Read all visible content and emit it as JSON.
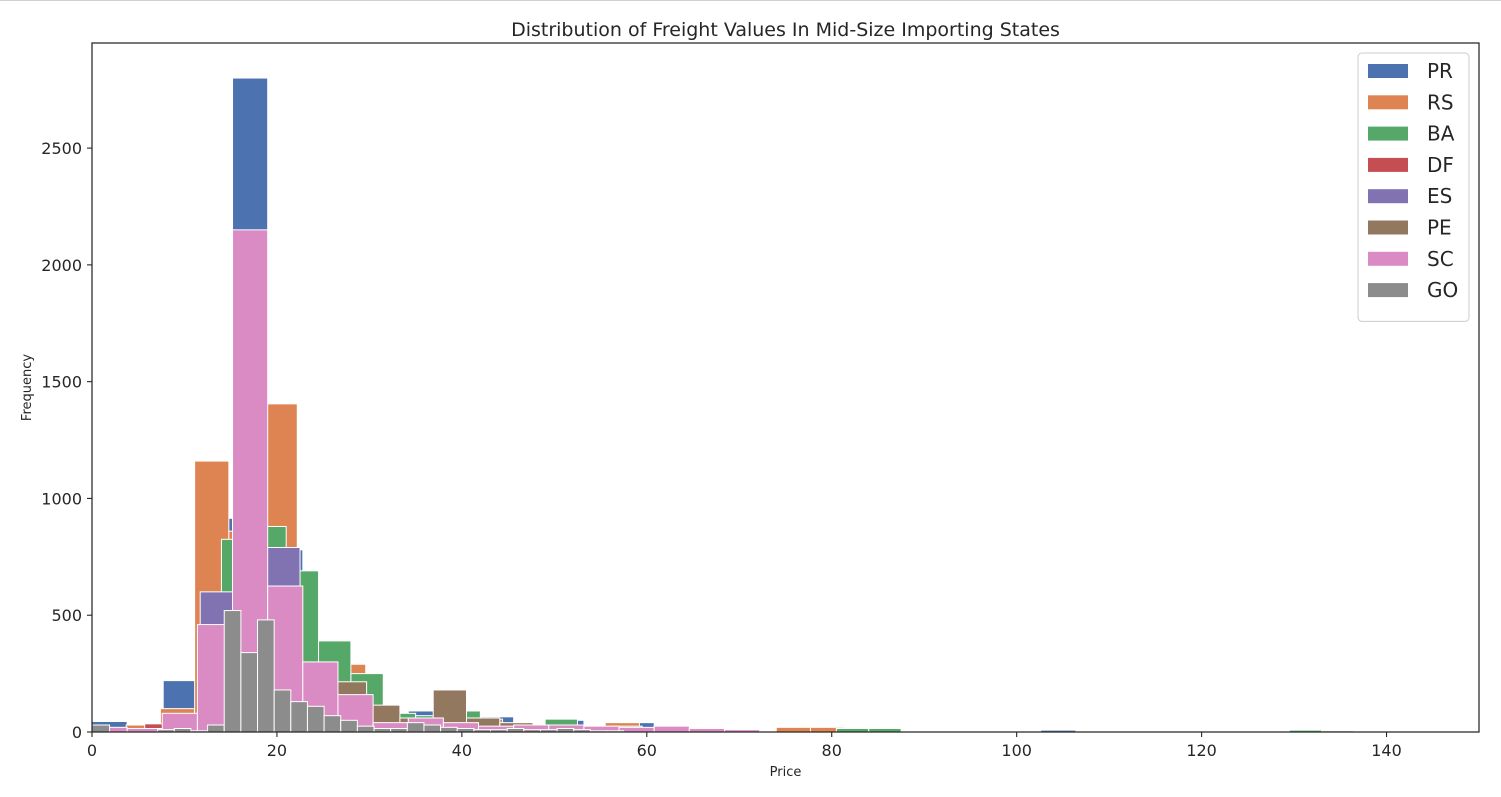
{
  "chart_data": {
    "type": "bar",
    "subtype": "histogram (overlaid)",
    "title": "Distribution of Freight Values In Mid-Size Importing States",
    "xlabel": "Price",
    "ylabel": "Frequency",
    "xlim": [
      0,
      150
    ],
    "ylim": [
      0,
      2950
    ],
    "xticks": [
      0,
      20,
      40,
      60,
      80,
      100,
      120,
      140
    ],
    "yticks": [
      0,
      500,
      1000,
      1500,
      2000,
      2500
    ],
    "legend_position": "upper right",
    "grid": false,
    "bar_edge_color": "#ffffff",
    "series": [
      {
        "name": "PR",
        "color": "#4c72b0",
        "bins": [
          [
            0,
            3.8,
            45
          ],
          [
            7.7,
            11.4,
            220
          ],
          [
            11.4,
            15.2,
            915
          ],
          [
            15.2,
            19,
            2800
          ],
          [
            19,
            22.8,
            780
          ],
          [
            26.6,
            30.4,
            180
          ],
          [
            34.2,
            38,
            90
          ],
          [
            38,
            41.8,
            70
          ],
          [
            41.8,
            45.6,
            65
          ],
          [
            49.4,
            53.2,
            50
          ],
          [
            57,
            60.8,
            40
          ],
          [
            64.6,
            68.4,
            15
          ],
          [
            102.6,
            106.4,
            8
          ]
        ]
      },
      {
        "name": "RS",
        "color": "#dd8452",
        "bins": [
          [
            3.7,
            7.4,
            30
          ],
          [
            7.4,
            11.1,
            100
          ],
          [
            11.1,
            14.8,
            1160
          ],
          [
            14.8,
            18.5,
            860
          ],
          [
            18.5,
            22.2,
            1405
          ],
          [
            22.2,
            25.9,
            330
          ],
          [
            25.9,
            29.6,
            290
          ],
          [
            29.6,
            33.3,
            90
          ],
          [
            40.7,
            44.4,
            55
          ],
          [
            55.5,
            59.2,
            40
          ],
          [
            74,
            77.7,
            20
          ],
          [
            77.7,
            81.4,
            20
          ]
        ]
      },
      {
        "name": "BA",
        "color": "#55a868",
        "bins": [
          [
            14,
            17.5,
            825
          ],
          [
            17.5,
            21,
            880
          ],
          [
            21,
            24.5,
            690
          ],
          [
            24.5,
            28,
            390
          ],
          [
            28,
            31.5,
            250
          ],
          [
            31.5,
            35,
            80
          ],
          [
            35,
            38.5,
            70
          ],
          [
            38.5,
            42,
            90
          ],
          [
            49,
            52.5,
            55
          ],
          [
            56,
            59.5,
            25
          ],
          [
            80.5,
            84,
            15
          ],
          [
            84,
            87.5,
            15
          ],
          [
            129.5,
            133,
            8
          ],
          [
            133,
            136.5,
            5
          ]
        ]
      },
      {
        "name": "DF",
        "color": "#c44e52",
        "bins": [
          [
            5.7,
            9.5,
            35
          ],
          [
            13.3,
            17.1,
            580
          ],
          [
            17.1,
            20.9,
            720
          ],
          [
            20.9,
            24.7,
            280
          ],
          [
            24.7,
            28.5,
            160
          ],
          [
            32.3,
            36.1,
            50
          ]
        ]
      },
      {
        "name": "ES",
        "color": "#8172b2",
        "bins": [
          [
            11.7,
            15.3,
            600
          ],
          [
            15.3,
            18.9,
            700
          ],
          [
            18.9,
            22.5,
            790
          ],
          [
            22.5,
            26.1,
            240
          ],
          [
            26.1,
            29.7,
            130
          ],
          [
            33.3,
            36.9,
            45
          ]
        ]
      },
      {
        "name": "PE",
        "color": "#937860",
        "bins": [
          [
            26.1,
            29.7,
            215
          ],
          [
            29.7,
            33.3,
            115
          ],
          [
            33.3,
            36.9,
            60
          ],
          [
            36.9,
            40.5,
            180
          ],
          [
            40.5,
            44.1,
            60
          ],
          [
            44.1,
            47.7,
            40
          ],
          [
            47.7,
            51.3,
            30
          ]
        ]
      },
      {
        "name": "SC",
        "color": "#da8bc3",
        "bins": [
          [
            0,
            3.8,
            20
          ],
          [
            3.8,
            7.6,
            15
          ],
          [
            7.6,
            11.4,
            80
          ],
          [
            11.4,
            15.2,
            460
          ],
          [
            15.2,
            19,
            2150
          ],
          [
            19,
            22.8,
            625
          ],
          [
            22.8,
            26.6,
            300
          ],
          [
            26.6,
            30.4,
            160
          ],
          [
            30.4,
            34.2,
            40
          ],
          [
            34.2,
            38,
            60
          ],
          [
            38,
            41.8,
            40
          ],
          [
            41.8,
            45.6,
            25
          ],
          [
            45.6,
            49.4,
            30
          ],
          [
            49.4,
            53.2,
            30
          ],
          [
            53.2,
            57,
            25
          ],
          [
            57,
            60.8,
            20
          ],
          [
            60.8,
            64.6,
            25
          ],
          [
            64.6,
            68.4,
            15
          ],
          [
            68.4,
            72.2,
            10
          ]
        ]
      },
      {
        "name": "GO",
        "color": "#8c8c8c",
        "bins": [
          [
            0,
            1.9,
            30
          ],
          [
            7.1,
            8.9,
            10
          ],
          [
            8.9,
            10.7,
            15
          ],
          [
            10.7,
            12.5,
            5
          ],
          [
            12.5,
            14.3,
            30
          ],
          [
            14.3,
            16.1,
            520
          ],
          [
            16.1,
            17.9,
            340
          ],
          [
            17.9,
            19.7,
            480
          ],
          [
            19.7,
            21.5,
            180
          ],
          [
            21.5,
            23.3,
            130
          ],
          [
            23.3,
            25.1,
            110
          ],
          [
            25.1,
            26.9,
            70
          ],
          [
            26.9,
            28.7,
            50
          ],
          [
            28.7,
            30.5,
            25
          ],
          [
            30.5,
            32.3,
            15
          ],
          [
            32.3,
            34.1,
            15
          ],
          [
            34.1,
            35.9,
            40
          ],
          [
            35.9,
            37.7,
            30
          ],
          [
            37.7,
            39.5,
            20
          ],
          [
            39.5,
            41.3,
            15
          ],
          [
            41.3,
            43.1,
            10
          ],
          [
            43.1,
            44.9,
            10
          ],
          [
            44.9,
            46.7,
            15
          ],
          [
            46.7,
            48.5,
            10
          ],
          [
            48.5,
            50.3,
            10
          ],
          [
            50.3,
            52.1,
            15
          ],
          [
            52.1,
            53.9,
            10
          ],
          [
            53.9,
            55.7,
            5
          ],
          [
            55.7,
            57.5,
            5
          ]
        ]
      }
    ]
  }
}
